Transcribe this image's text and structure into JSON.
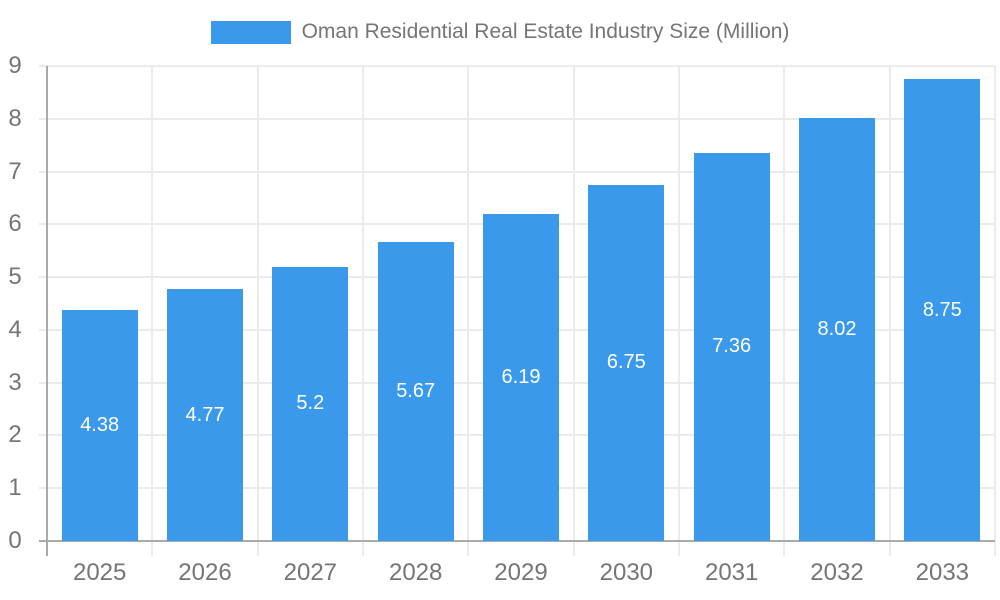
{
  "legend": {
    "label": "Oman Residential Real Estate Industry Size (Million)"
  },
  "chart_data": {
    "type": "bar",
    "title": "Oman Residential Real Estate Industry Size (Million)",
    "categories": [
      "2025",
      "2026",
      "2027",
      "2028",
      "2029",
      "2030",
      "2031",
      "2032",
      "2033"
    ],
    "series": [
      {
        "name": "Oman Residential Real Estate Industry Size (Million)",
        "values": [
          4.38,
          4.77,
          5.2,
          5.67,
          6.19,
          6.75,
          7.36,
          8.02,
          8.75
        ]
      }
    ],
    "xlabel": "",
    "ylabel": "",
    "ylim": [
      0,
      9
    ],
    "y_ticks": [
      0,
      1,
      2,
      3,
      4,
      5,
      6,
      7,
      8,
      9
    ],
    "grid": true,
    "legend_position": "top-center",
    "value_label_position": "inside-center",
    "colors": {
      "bar": "#3B99EC",
      "value_label": "#FFFFFF",
      "axis_text": "#757575",
      "legend_text": "#757575",
      "gridline": "#EBEBEB",
      "axis_line": "#AAAAAA",
      "background": "#FFFFFF"
    }
  }
}
